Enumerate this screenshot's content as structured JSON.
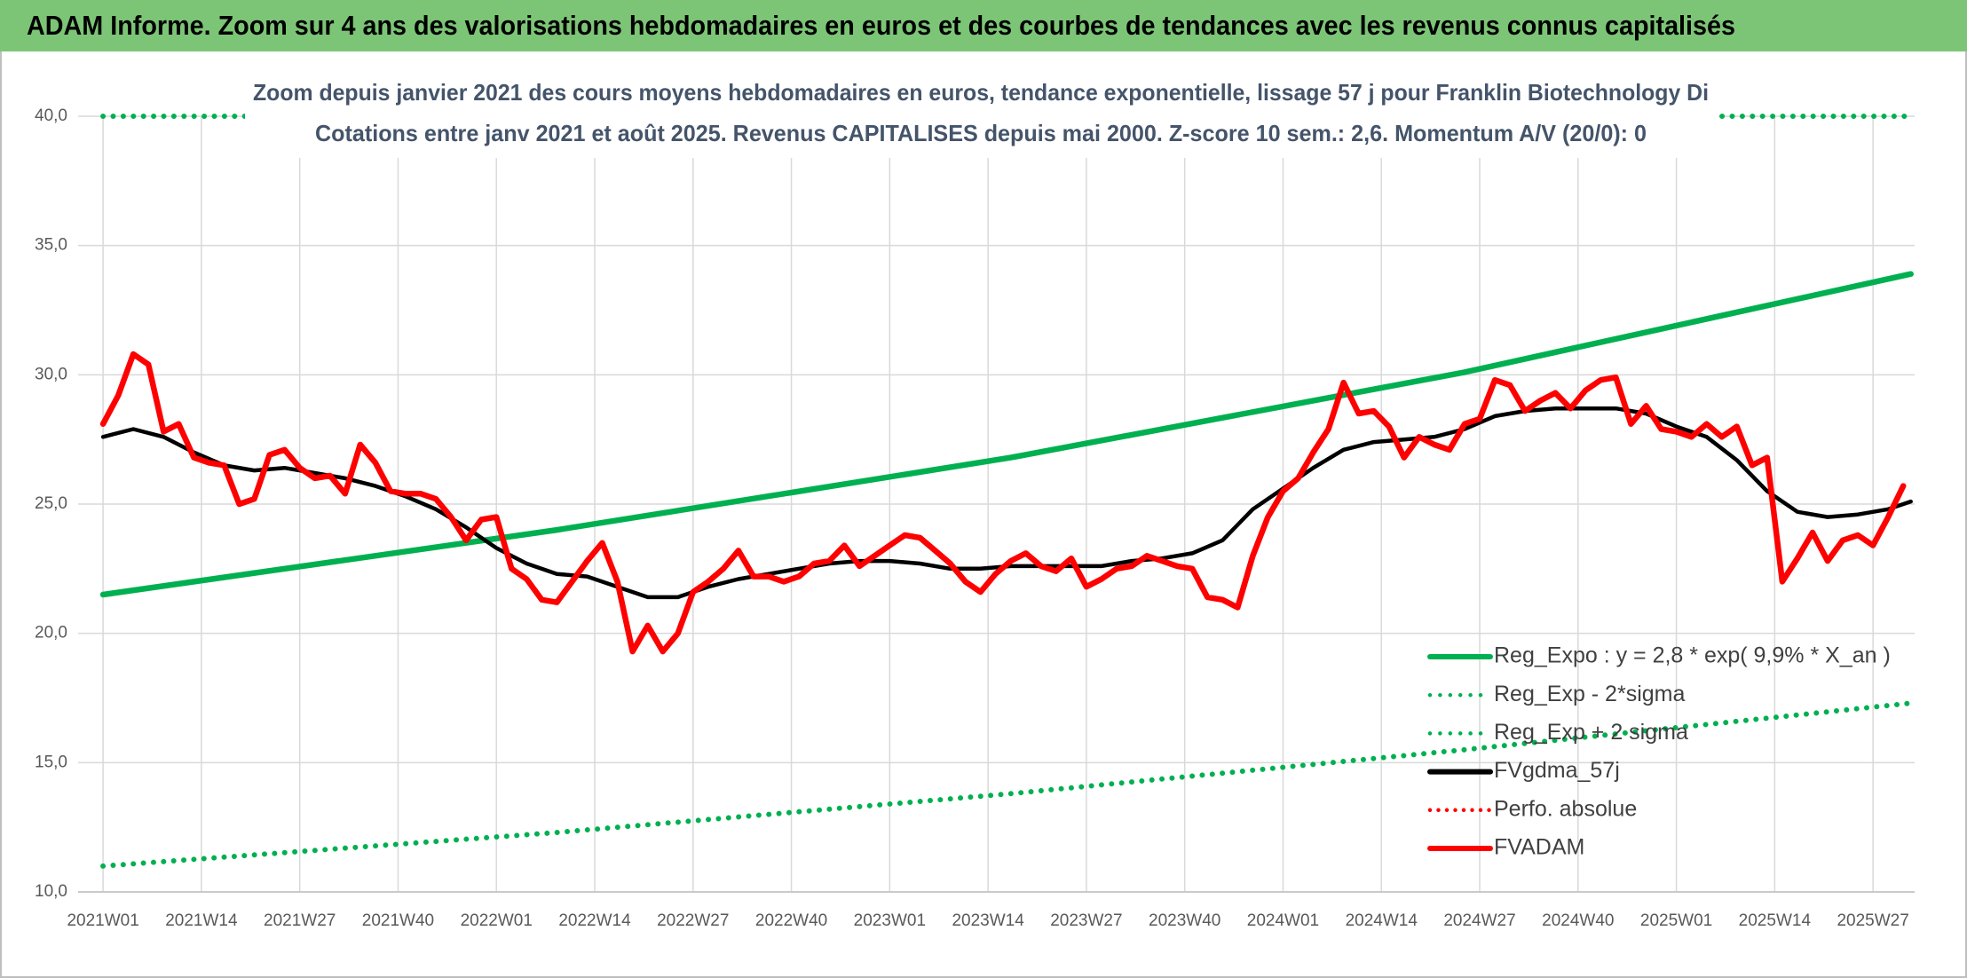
{
  "chart_data": {
    "type": "line",
    "title": "ADAM Informe. Zoom sur 4 ans des valorisations hebdomadaires en euros et des courbes de tendances avec les revenus connus capitalisés",
    "subtitle": [
      "Zoom depuis janvier 2021 des cours moyens hebdomadaires en euros, tendance exponentielle, lissage 57 j pour Franklin Biotechnology Di",
      "Cotations entre janv 2021 et août 2025. Revenus CAPITALISES depuis mai 2000. Z-score 10 sem.: 2,6. Momentum A/V (20/0): 0"
    ],
    "xlim": [
      -3.3,
      239.5
    ],
    "xticks": [
      {
        "value": 0,
        "label": "2021W01"
      },
      {
        "value": 13,
        "label": "2021W14"
      },
      {
        "value": 26,
        "label": "2021W27"
      },
      {
        "value": 39,
        "label": "2021W40"
      },
      {
        "value": 52,
        "label": "2022W01"
      },
      {
        "value": 65,
        "label": "2022W14"
      },
      {
        "value": 78,
        "label": "2022W27"
      },
      {
        "value": 91,
        "label": "2022W40"
      },
      {
        "value": 104,
        "label": "2023W01"
      },
      {
        "value": 117,
        "label": "2023W14"
      },
      {
        "value": 130,
        "label": "2023W27"
      },
      {
        "value": 143,
        "label": "2023W40"
      },
      {
        "value": 156,
        "label": "2024W01"
      },
      {
        "value": 169,
        "label": "2024W14"
      },
      {
        "value": 182,
        "label": "2024W27"
      },
      {
        "value": 195,
        "label": "2024W40"
      },
      {
        "value": 208,
        "label": "2025W01"
      },
      {
        "value": 221,
        "label": "2025W14"
      },
      {
        "value": 234,
        "label": "2025W27"
      }
    ],
    "ylim": [
      10,
      40
    ],
    "yticks": [
      {
        "value": 10,
        "label": "10,0"
      },
      {
        "value": 15,
        "label": "15,0"
      },
      {
        "value": 20,
        "label": "20,0"
      },
      {
        "value": 25,
        "label": "25,0"
      },
      {
        "value": 30,
        "label": "30,0"
      },
      {
        "value": 35,
        "label": "35,0"
      },
      {
        "value": 40,
        "label": "40,0"
      }
    ],
    "grid": true,
    "legend": "lower-right",
    "series": [
      {
        "name": "Reg_Expo : y = 2,8 * exp( 9,9% *  X_an )",
        "color": "#00b050",
        "style": "solid",
        "x": [
          0,
          60,
          120,
          180,
          239
        ],
        "values": [
          21.5,
          24.0,
          26.8,
          30.1,
          33.9
        ]
      },
      {
        "name": "Reg_Exp - 2*sigma",
        "color": "#00b050",
        "style": "dotted",
        "x": [
          0,
          60,
          120,
          180,
          239
        ],
        "values": [
          11.0,
          12.3,
          13.8,
          15.5,
          17.3
        ]
      },
      {
        "name": "Reg_Exp + 2 sigma",
        "color": "#00b050",
        "style": "dotted",
        "x": [
          0,
          239
        ],
        "values": [
          40,
          40
        ]
      },
      {
        "name": "FVgdma_57j",
        "color": "#000000",
        "style": "solid",
        "x": [
          0,
          4,
          8,
          12,
          16,
          20,
          24,
          28,
          32,
          36,
          40,
          44,
          48,
          52,
          56,
          60,
          64,
          68,
          72,
          76,
          80,
          84,
          88,
          92,
          96,
          100,
          104,
          108,
          112,
          116,
          120,
          124,
          128,
          132,
          136,
          140,
          144,
          148,
          152,
          156,
          160,
          164,
          168,
          172,
          176,
          180,
          184,
          188,
          192,
          196,
          200,
          204,
          208,
          212,
          216,
          220,
          224,
          228,
          232,
          236,
          239
        ],
        "values": [
          27.6,
          27.9,
          27.6,
          27.0,
          26.5,
          26.3,
          26.4,
          26.2,
          26.0,
          25.7,
          25.3,
          24.8,
          24.1,
          23.3,
          22.7,
          22.3,
          22.2,
          21.8,
          21.4,
          21.4,
          21.8,
          22.1,
          22.3,
          22.5,
          22.7,
          22.8,
          22.8,
          22.7,
          22.5,
          22.5,
          22.6,
          22.6,
          22.6,
          22.6,
          22.8,
          22.9,
          23.1,
          23.6,
          24.8,
          25.6,
          26.4,
          27.1,
          27.4,
          27.5,
          27.6,
          27.9,
          28.4,
          28.6,
          28.7,
          28.7,
          28.7,
          28.5,
          28.0,
          27.6,
          26.7,
          25.5,
          24.7,
          24.5,
          24.6,
          24.8,
          25.1
        ]
      },
      {
        "name": "Perfo. absolue",
        "color": "#ff0000",
        "style": "dotted",
        "x": [],
        "values": []
      },
      {
        "name": "FVADAM",
        "color": "#ff0000",
        "style": "solid",
        "x": [
          0,
          2,
          4,
          6,
          8,
          10,
          12,
          14,
          16,
          18,
          20,
          22,
          24,
          26,
          28,
          30,
          32,
          34,
          36,
          38,
          40,
          42,
          44,
          46,
          48,
          50,
          52,
          54,
          56,
          58,
          60,
          62,
          64,
          66,
          68,
          70,
          72,
          74,
          76,
          78,
          80,
          82,
          84,
          86,
          88,
          90,
          92,
          94,
          96,
          98,
          100,
          102,
          104,
          106,
          108,
          110,
          112,
          114,
          116,
          118,
          120,
          122,
          124,
          126,
          128,
          130,
          132,
          134,
          136,
          138,
          140,
          142,
          144,
          146,
          148,
          150,
          152,
          154,
          156,
          158,
          160,
          162,
          164,
          166,
          168,
          170,
          172,
          174,
          176,
          178,
          180,
          182,
          184,
          186,
          188,
          190,
          192,
          194,
          196,
          198,
          200,
          202,
          204,
          206,
          208,
          210,
          212,
          214,
          216,
          218,
          220,
          222,
          224,
          226,
          228,
          230,
          232,
          234,
          236,
          238
        ],
        "values": [
          28.1,
          29.2,
          30.8,
          30.4,
          27.8,
          28.1,
          26.8,
          26.6,
          26.5,
          25.0,
          25.2,
          26.9,
          27.1,
          26.4,
          26.0,
          26.1,
          25.4,
          27.3,
          26.6,
          25.5,
          25.4,
          25.4,
          25.2,
          24.5,
          23.6,
          24.4,
          24.5,
          22.5,
          22.1,
          21.3,
          21.2,
          22.0,
          22.8,
          23.5,
          22.0,
          19.3,
          20.3,
          19.3,
          20.0,
          21.6,
          22.0,
          22.5,
          23.2,
          22.2,
          22.2,
          22.0,
          22.2,
          22.7,
          22.8,
          23.4,
          22.6,
          23.0,
          23.4,
          23.8,
          23.7,
          23.2,
          22.7,
          22.0,
          21.6,
          22.3,
          22.8,
          23.1,
          22.6,
          22.4,
          22.9,
          21.8,
          22.1,
          22.5,
          22.6,
          23.0,
          22.8,
          22.6,
          22.5,
          21.4,
          21.3,
          21.0,
          23.0,
          24.5,
          25.5,
          26.0,
          27.0,
          27.9,
          29.7,
          28.5,
          28.6,
          28.0,
          26.8,
          27.6,
          27.3,
          27.1,
          28.1,
          28.3,
          29.8,
          29.6,
          28.6,
          29.0,
          29.3,
          28.7,
          29.4,
          29.8,
          29.9,
          28.1,
          28.8,
          27.9,
          27.8,
          27.6,
          28.1,
          27.6,
          28.0,
          26.5,
          26.8,
          22.0,
          22.9,
          23.9,
          22.8,
          23.6,
          23.8,
          23.4,
          24.5,
          25.7
        ]
      }
    ]
  }
}
